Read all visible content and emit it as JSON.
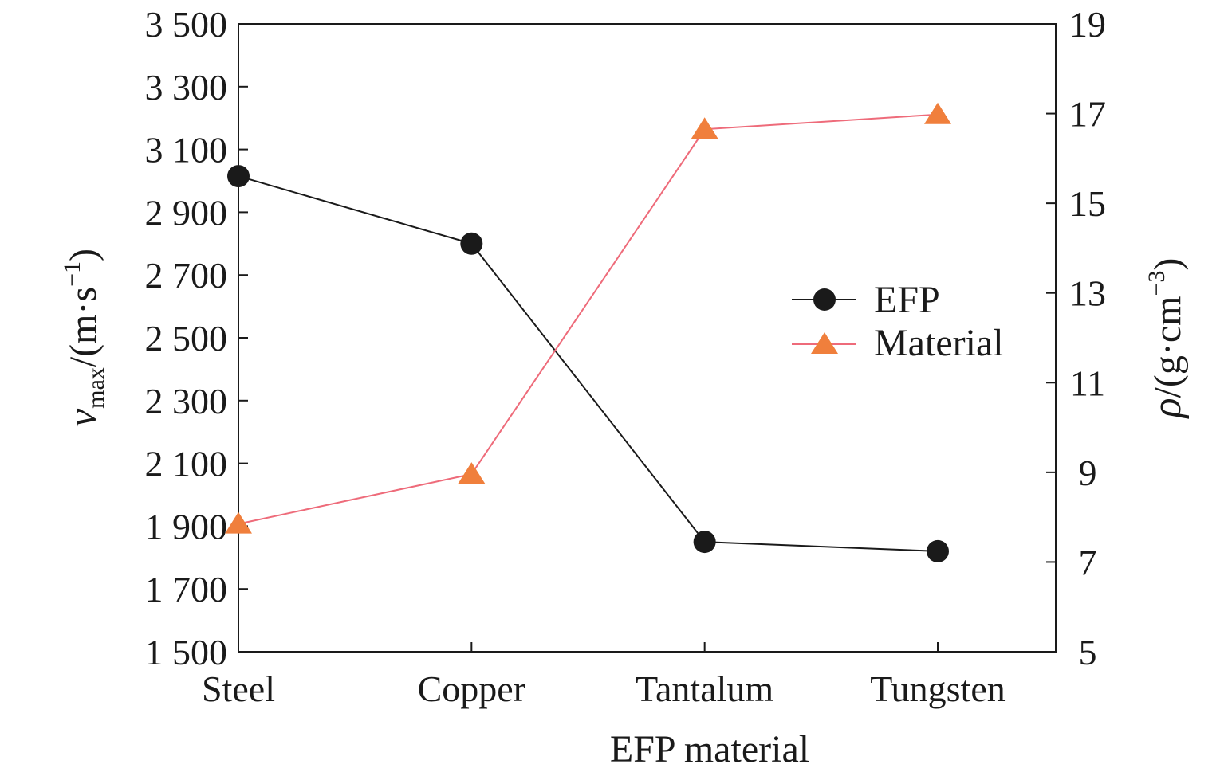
{
  "chart_data": {
    "type": "line",
    "title": "",
    "categories": [
      "Steel",
      "Copper",
      "Tantalum",
      "Tungsten"
    ],
    "xlabel": "EFP material",
    "ylabel_left": {
      "base": "v",
      "sub": "max",
      "units": "/(m·s",
      "sup": "−1",
      "close": ")"
    },
    "ylabel_right": {
      "base": "ρ",
      "units": "/(g·cm",
      "sup": "−3",
      "close": ")"
    },
    "y_left": {
      "lim": [
        1500,
        3500
      ],
      "ticks": [
        1500,
        1700,
        1900,
        2100,
        2300,
        2500,
        2700,
        2900,
        3100,
        3300,
        3500
      ],
      "tick_labels": [
        "1 500",
        "1 700",
        "1 900",
        "2 100",
        "2 300",
        "2 500",
        "2 700",
        "2 900",
        "3 100",
        "3 300",
        "3 500"
      ]
    },
    "y_right": {
      "lim": [
        5,
        19
      ],
      "ticks": [
        5,
        7,
        9,
        11,
        13,
        15,
        17,
        19
      ],
      "tick_labels": [
        "5",
        "7",
        "9",
        "11",
        "13",
        "15",
        "17",
        "19"
      ]
    },
    "series": [
      {
        "name": "EFP",
        "axis": "left",
        "marker": "circle",
        "color": "#1a1a1a",
        "values": [
          3015,
          2800,
          1850,
          1820
        ]
      },
      {
        "name": "Material",
        "axis": "right",
        "marker": "triangle",
        "color": "#ee6b7a",
        "marker_color": "#f07f3c",
        "values": [
          7.85,
          8.96,
          16.65,
          16.98
        ]
      }
    ],
    "legend": {
      "position": "right-center"
    },
    "grid": false
  }
}
